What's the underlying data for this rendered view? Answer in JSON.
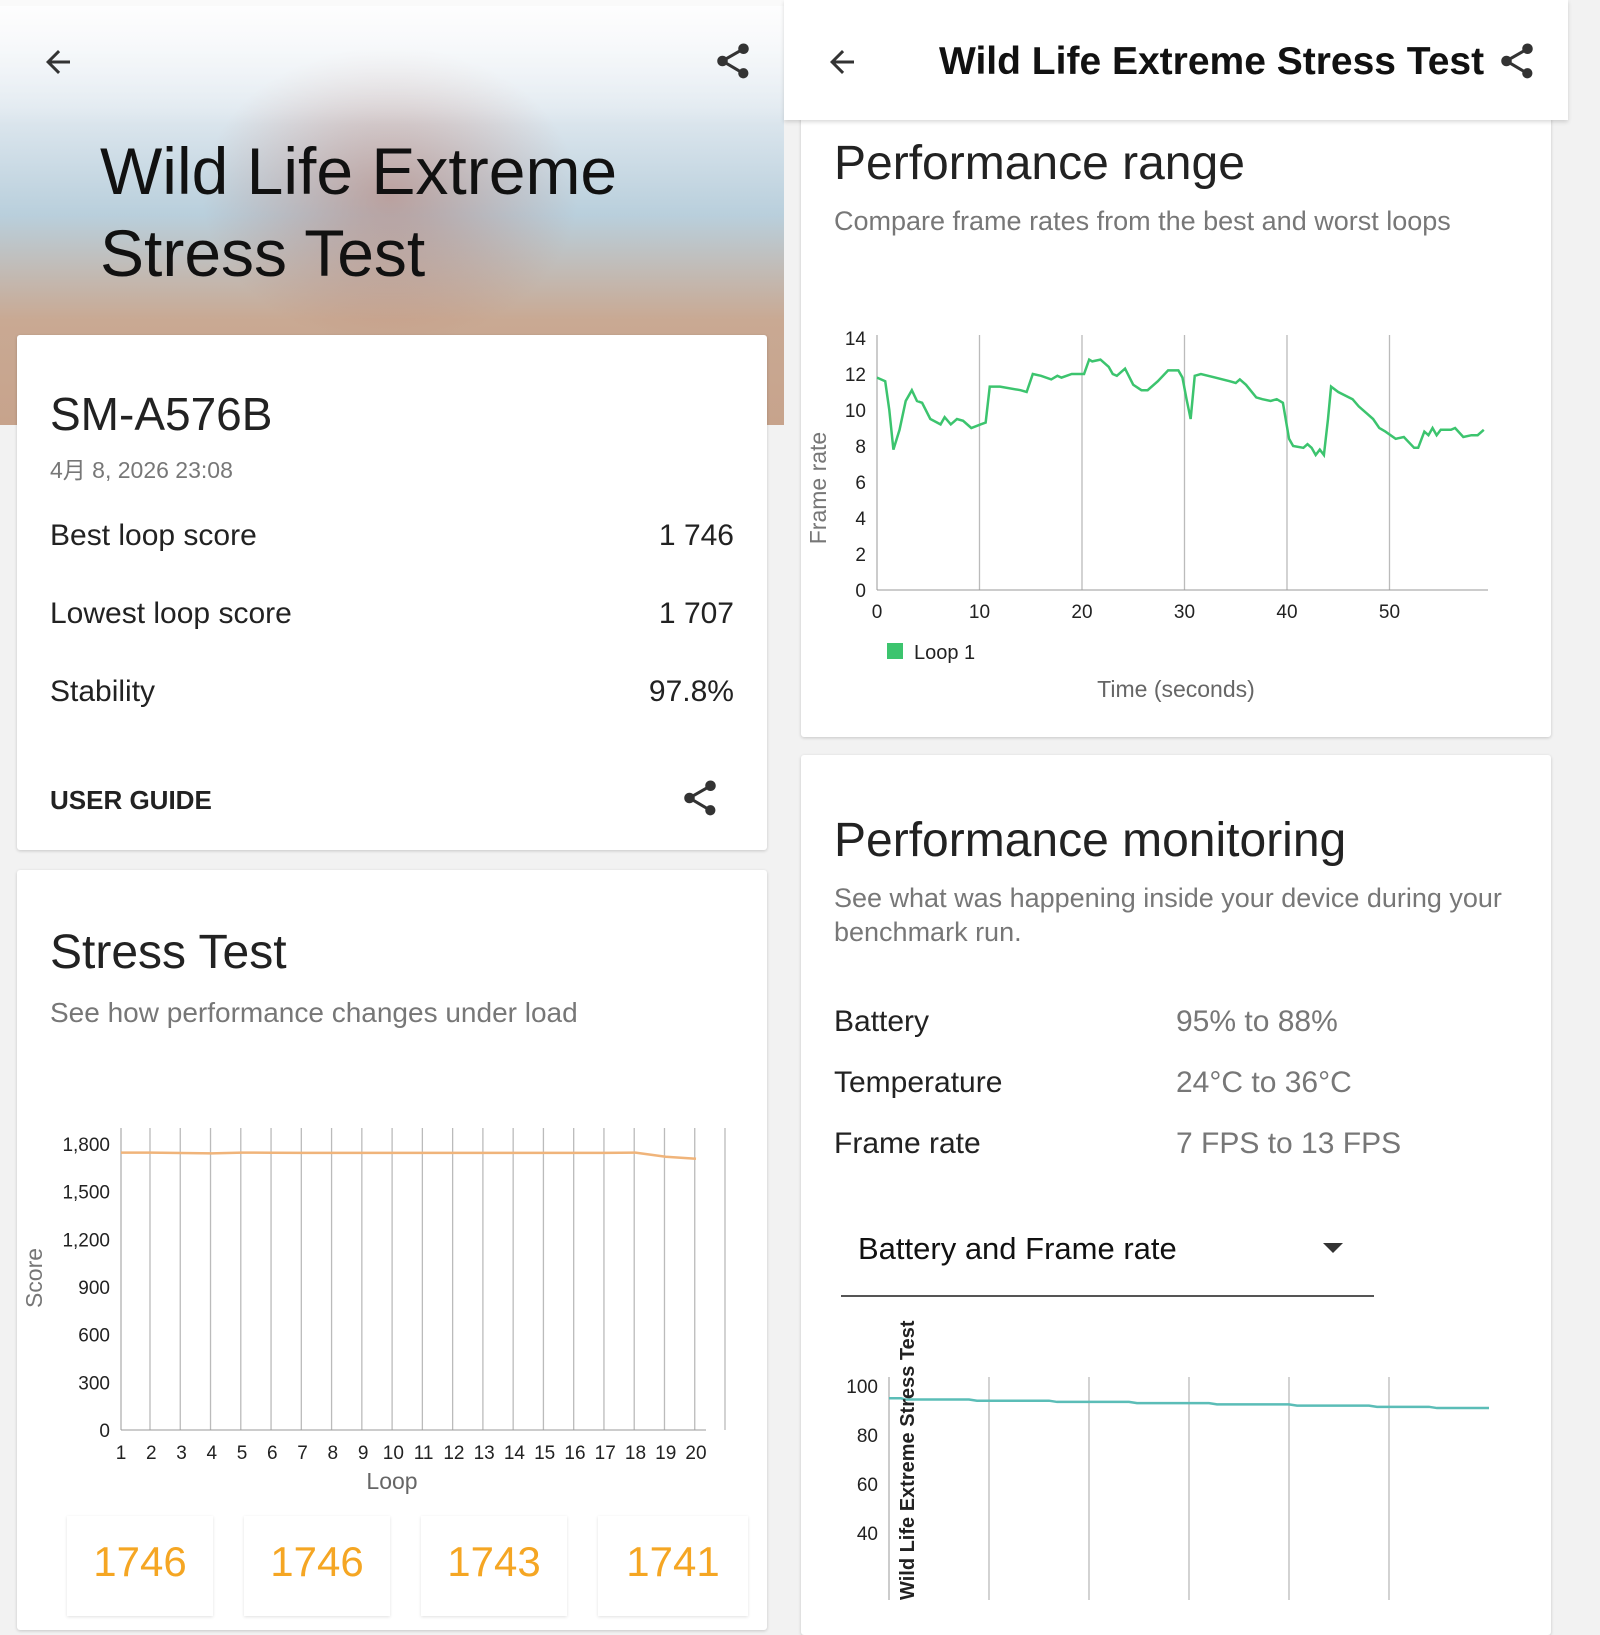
{
  "left_panel": {
    "hero_title_line1": "Wild Life Extreme",
    "hero_title_line2": "Stress Test",
    "summary": {
      "device": "SM-A576B",
      "date": "4月 8, 2026 23:08",
      "rows": [
        {
          "label": "Best loop score",
          "value": "1 746"
        },
        {
          "label": "Lowest loop score",
          "value": "1 707"
        },
        {
          "label": "Stability",
          "value": "97.8%"
        }
      ],
      "user_guide": "USER GUIDE"
    },
    "stress": {
      "title": "Stress Test",
      "subtitle": "See how performance changes under load",
      "loop_cards": [
        "1746",
        "1746",
        "1743",
        "1741"
      ]
    }
  },
  "right_panel": {
    "header_title": "Wild Life Extreme Stress Test",
    "range": {
      "title": "Performance range",
      "subtitle": "Compare frame rates from the best and worst loops"
    },
    "monitoring": {
      "title": "Performance monitoring",
      "subtitle": "See what was happening inside your device during your benchmark run.",
      "rows": [
        {
          "label": "Battery",
          "value": "95% to 88%"
        },
        {
          "label": "Temperature",
          "value": "24°C to 36°C"
        },
        {
          "label": "Frame rate",
          "value": "7 FPS to 13 FPS"
        }
      ],
      "dropdown": "Battery and Frame rate"
    }
  },
  "colors": {
    "score_line": "#f0b47a",
    "fps_line": "#3cc46e",
    "battery_line": "#5bbdb7",
    "score_text": "#f5a623"
  },
  "chart_data": [
    {
      "type": "line",
      "title": "Stress Test",
      "xlabel": "Loop",
      "ylabel": "Score",
      "ylim": [
        0,
        1800
      ],
      "yticks": [
        "0",
        "300",
        "600",
        "900",
        "1,200",
        "1,500",
        "1,800"
      ],
      "categories": [
        "1",
        "2",
        "3",
        "4",
        "5",
        "6",
        "7",
        "8",
        "9",
        "10",
        "11",
        "12",
        "13",
        "14",
        "15",
        "16",
        "17",
        "18",
        "19",
        "20"
      ],
      "series": [
        {
          "name": "Score",
          "values": [
            1746,
            1746,
            1743,
            1741,
            1746,
            1745,
            1744,
            1744,
            1744,
            1744,
            1744,
            1744,
            1744,
            1744,
            1744,
            1744,
            1744,
            1746,
            1720,
            1707
          ]
        }
      ]
    },
    {
      "type": "line",
      "title": "Performance range",
      "xlabel": "Time (seconds)",
      "ylabel": "Frame rate",
      "ylim": [
        0,
        14
      ],
      "xlim": [
        0,
        60
      ],
      "yticks": [
        "0",
        "2",
        "4",
        "6",
        "8",
        "10",
        "12",
        "14"
      ],
      "xticks": [
        "0",
        "10",
        "20",
        "30",
        "40",
        "50"
      ],
      "legend": "bottom-left",
      "series": [
        {
          "name": "Loop 1",
          "points": [
            [
              0,
              11.8
            ],
            [
              0.8,
              11.6
            ],
            [
              1.2,
              10
            ],
            [
              1.6,
              7.8
            ],
            [
              2.2,
              8.9
            ],
            [
              2.8,
              10.5
            ],
            [
              3.4,
              11.1
            ],
            [
              3.9,
              10.5
            ],
            [
              4.4,
              10.4
            ],
            [
              5.2,
              9.5
            ],
            [
              6.2,
              9.2
            ],
            [
              6.6,
              9.6
            ],
            [
              7.2,
              9.2
            ],
            [
              7.8,
              9.5
            ],
            [
              8.4,
              9.4
            ],
            [
              9.2,
              9.0
            ],
            [
              10.1,
              9.2
            ],
            [
              10.6,
              9.3
            ],
            [
              11,
              11.3
            ],
            [
              12,
              11.3
            ],
            [
              14,
              11.1
            ],
            [
              14.6,
              11.0
            ],
            [
              15.2,
              12.0
            ],
            [
              16,
              11.9
            ],
            [
              17,
              11.7
            ],
            [
              17.6,
              11.9
            ],
            [
              18,
              11.8
            ],
            [
              19,
              12.0
            ],
            [
              20.2,
              12.0
            ],
            [
              20.7,
              12.8
            ],
            [
              21,
              12.7
            ],
            [
              21.8,
              12.8
            ],
            [
              22.6,
              12.4
            ],
            [
              23,
              12.0
            ],
            [
              23.4,
              11.9
            ],
            [
              24.2,
              12.3
            ],
            [
              25,
              11.4
            ],
            [
              25.8,
              11.1
            ],
            [
              26.4,
              11.1
            ],
            [
              27.4,
              11.6
            ],
            [
              28.4,
              12.2
            ],
            [
              29.4,
              12.2
            ],
            [
              29.8,
              11.8
            ],
            [
              30.2,
              10.6
            ],
            [
              30.6,
              9.5
            ],
            [
              31,
              11.9
            ],
            [
              31.6,
              12
            ],
            [
              33,
              11.8
            ],
            [
              34.4,
              11.6
            ],
            [
              35,
              11.5
            ],
            [
              35.4,
              11.7
            ],
            [
              36,
              11.4
            ],
            [
              37,
              10.7
            ],
            [
              37.6,
              10.6
            ],
            [
              38.4,
              10.5
            ],
            [
              39,
              10.6
            ],
            [
              39.6,
              10.4
            ],
            [
              40.2,
              8.4
            ],
            [
              40.6,
              8.0
            ],
            [
              41.6,
              7.9
            ],
            [
              42,
              8.1
            ],
            [
              42.4,
              7.9
            ],
            [
              42.8,
              7.5
            ],
            [
              43.2,
              7.8
            ],
            [
              43.6,
              7.5
            ],
            [
              44,
              9.5
            ],
            [
              44.3,
              11.3
            ],
            [
              45,
              11
            ],
            [
              46.4,
              10.6
            ],
            [
              47,
              10.2
            ],
            [
              47.8,
              9.8
            ],
            [
              48.4,
              9.5
            ],
            [
              49,
              9.0
            ],
            [
              49.6,
              8.8
            ],
            [
              50.6,
              8.4
            ],
            [
              51.4,
              8.5
            ],
            [
              52.4,
              7.9
            ],
            [
              52.8,
              7.9
            ],
            [
              53.4,
              8.8
            ],
            [
              53.8,
              8.6
            ],
            [
              54.2,
              9.0
            ],
            [
              54.6,
              8.6
            ],
            [
              55,
              8.9
            ],
            [
              56,
              8.9
            ],
            [
              56.4,
              9.0
            ],
            [
              57.2,
              8.5
            ],
            [
              58,
              8.6
            ],
            [
              58.6,
              8.6
            ],
            [
              59.2,
              8.9
            ]
          ]
        }
      ]
    },
    {
      "type": "line",
      "title": "Battery and Frame rate",
      "ylabel": "Wild Life Extreme Stress Test",
      "ylim": [
        30,
        100
      ],
      "yticks": [
        "40",
        "60",
        "80",
        "100"
      ],
      "series": [
        {
          "name": "Battery",
          "points": [
            [
              0,
              95
            ],
            [
              0.3,
              95
            ],
            [
              0.4,
              94.5
            ],
            [
              2,
              94.5
            ],
            [
              2.2,
              94
            ],
            [
              4,
              94
            ],
            [
              4.2,
              93.5
            ],
            [
              6,
              93.5
            ],
            [
              6.2,
              93
            ],
            [
              8,
              93
            ],
            [
              8.2,
              92.5
            ],
            [
              10,
              92.5
            ],
            [
              10.2,
              92
            ],
            [
              12,
              92
            ],
            [
              12.2,
              91.5
            ],
            [
              13.5,
              91.5
            ],
            [
              13.7,
              91
            ],
            [
              15,
              91
            ]
          ]
        }
      ]
    }
  ]
}
